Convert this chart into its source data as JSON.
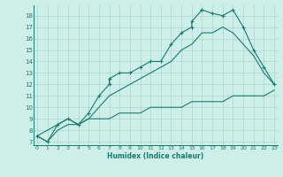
{
  "xlabel": "Humidex (Indice chaleur)",
  "bg_color": "#ceeee8",
  "grid_color": "#a8d8cc",
  "line_color": "#1a7a6e",
  "xlim": [
    -0.3,
    23.3
  ],
  "ylim": [
    6.7,
    18.9
  ],
  "xticks": [
    0,
    1,
    2,
    3,
    4,
    5,
    6,
    7,
    8,
    9,
    10,
    11,
    12,
    13,
    14,
    15,
    16,
    17,
    18,
    19,
    20,
    21,
    22,
    23
  ],
  "yticks": [
    7,
    8,
    9,
    10,
    11,
    12,
    13,
    14,
    15,
    16,
    17,
    18
  ],
  "line1_x": [
    0,
    1,
    2,
    3,
    4,
    5,
    6,
    7,
    7,
    8,
    9,
    10,
    11,
    12,
    13,
    14,
    15,
    15,
    16,
    16,
    17,
    18,
    19,
    20,
    21,
    22,
    23
  ],
  "line1_y": [
    7.5,
    7.0,
    8.5,
    9.0,
    8.5,
    9.5,
    11.0,
    12.0,
    12.5,
    13.0,
    13.0,
    13.5,
    14.0,
    14.0,
    15.5,
    16.5,
    17.0,
    17.5,
    18.5,
    18.5,
    18.2,
    18.0,
    18.5,
    17.0,
    15.0,
    13.5,
    12.0
  ],
  "line2_x": [
    0,
    2,
    3,
    4,
    5,
    6,
    7,
    8,
    9,
    10,
    11,
    12,
    13,
    14,
    15,
    16,
    17,
    18,
    19,
    20,
    21,
    22,
    23
  ],
  "line2_y": [
    7.5,
    8.5,
    9.0,
    8.5,
    9.0,
    10.0,
    11.0,
    11.5,
    12.0,
    12.5,
    13.0,
    13.5,
    14.0,
    15.0,
    15.5,
    16.5,
    16.5,
    17.0,
    16.5,
    15.5,
    14.5,
    13.0,
    12.0
  ],
  "line3_x": [
    0,
    1,
    2,
    3,
    4,
    5,
    6,
    7,
    8,
    9,
    10,
    11,
    12,
    13,
    14,
    15,
    16,
    17,
    18,
    19,
    20,
    21,
    22,
    23
  ],
  "line3_y": [
    7.5,
    7.0,
    8.0,
    8.5,
    8.5,
    9.0,
    9.0,
    9.0,
    9.5,
    9.5,
    9.5,
    10.0,
    10.0,
    10.0,
    10.0,
    10.5,
    10.5,
    10.5,
    10.5,
    11.0,
    11.0,
    11.0,
    11.0,
    11.5
  ]
}
